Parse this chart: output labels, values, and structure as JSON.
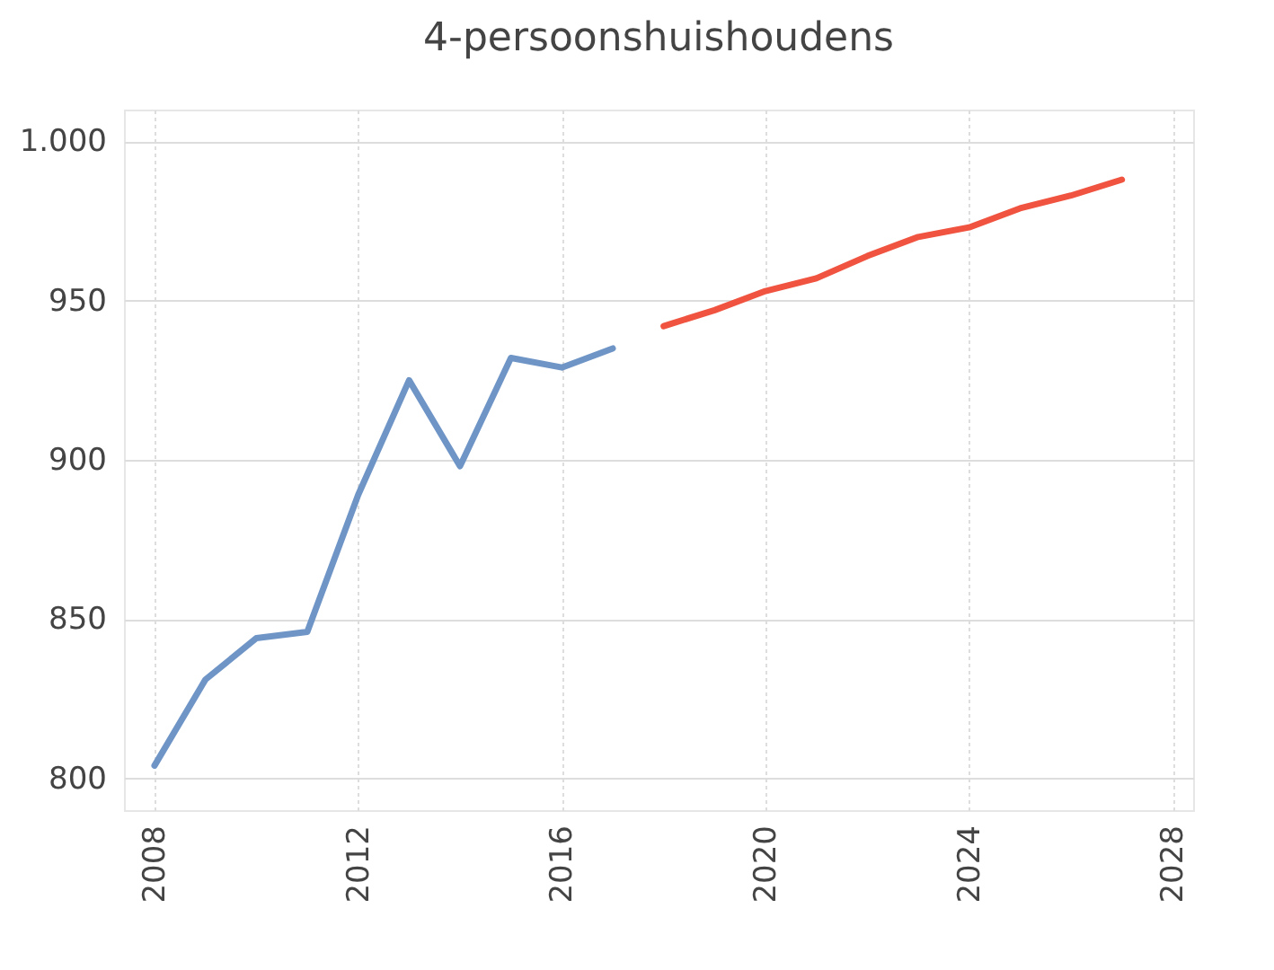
{
  "chart_data": {
    "type": "line",
    "title": "4-persoonshuishoudens",
    "series": [
      {
        "color": "#6f95c7",
        "x": [
          2008,
          2009,
          2010,
          2011,
          2012,
          2013,
          2014,
          2015,
          2016,
          2017
        ],
        "values": [
          804,
          831,
          844,
          846,
          889,
          925,
          898,
          932,
          929,
          935
        ]
      },
      {
        "color": "#f0533f",
        "x": [
          2018,
          2019,
          2020,
          2021,
          2022,
          2023,
          2024,
          2025,
          2026,
          2027
        ],
        "values": [
          942,
          947,
          953,
          957,
          964,
          970,
          973,
          979,
          983,
          988
        ]
      }
    ],
    "xlim": [
      2007.4,
      2028.4
    ],
    "xticks": [
      2008,
      2012,
      2016,
      2020,
      2024,
      2028
    ],
    "ylim": [
      790,
      1010
    ],
    "yticks": [
      800,
      850,
      900,
      950,
      {
        "value": 1000,
        "label": "1.000"
      }
    ],
    "grid": true,
    "marker": "none",
    "line_style": "solid"
  }
}
